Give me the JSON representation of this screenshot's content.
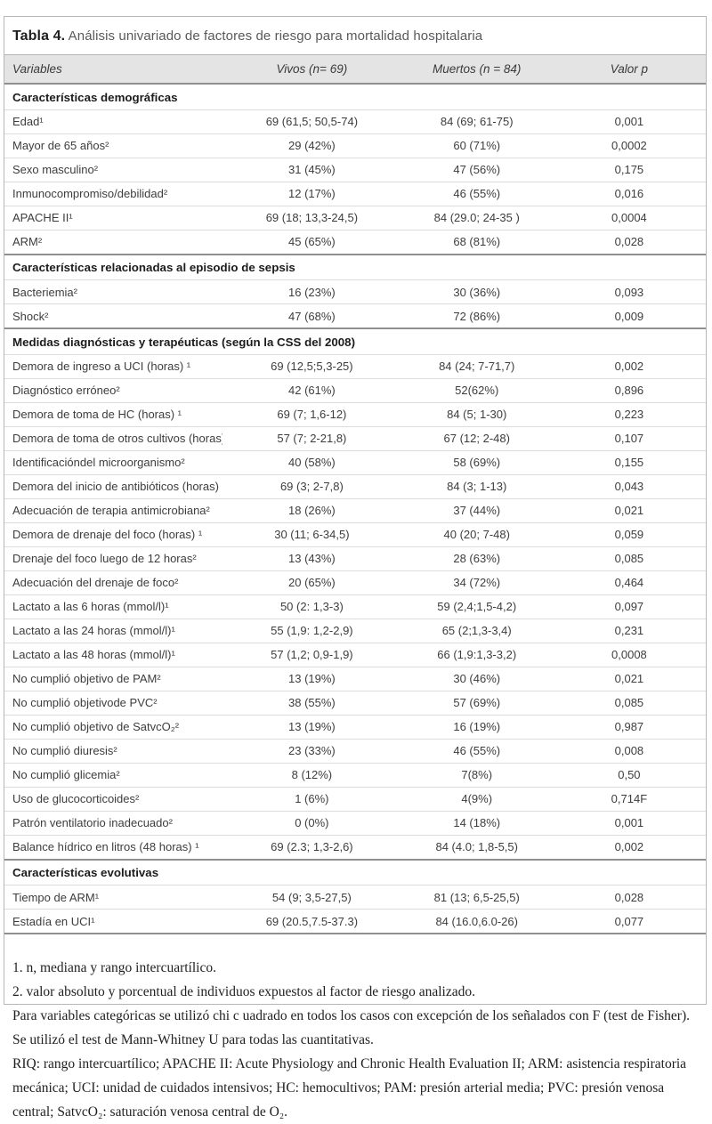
{
  "title": {
    "label": "Tabla 4.",
    "text": "Análisis univariado de factores de riesgo para mortalidad hospitalaria"
  },
  "columns": [
    "Variables",
    "Vivos (n= 69)",
    "Muertos (n = 84)",
    "Valor p"
  ],
  "sections": [
    {
      "header": "Características demográficas",
      "rows": [
        [
          "Edad¹",
          "69 (61,5; 50,5-74)",
          "84 (69; 61-75)",
          "0,001"
        ],
        [
          "Mayor de 65 años²",
          "29 (42%)",
          "60 (71%)",
          "0,0002"
        ],
        [
          "Sexo masculino²",
          "31 (45%)",
          "47 (56%)",
          "0,175"
        ],
        [
          "Inmunocompromiso/debilidad²",
          "12 (17%)",
          "46 (55%)",
          "0,016"
        ],
        [
          "APACHE II¹",
          "69 (18; 13,3-24,5)",
          "84 (29.0; 24-35 )",
          "0,0004"
        ],
        [
          "ARM²",
          "45 (65%)",
          "68 (81%)",
          "0,028"
        ]
      ]
    },
    {
      "header": "Características relacionadas al episodio de sepsis",
      "rows": [
        [
          "Bacteriemia²",
          "16 (23%)",
          "30 (36%)",
          "0,093"
        ],
        [
          "Shock²",
          "47 (68%)",
          "72 (86%)",
          "0,009"
        ]
      ]
    },
    {
      "header": "Medidas diagnósticas y terapéuticas (según la CSS del 2008)",
      "rows": [
        [
          "Demora de ingreso a UCI (horas) ¹",
          "69 (12,5;5,3-25)",
          "84 (24; 7-71,7)",
          "0,002"
        ],
        [
          "Diagnóstico erróneo²",
          "42 (61%)",
          "52(62%)",
          "0,896"
        ],
        [
          "Demora de toma de HC (horas) ¹",
          "69 (7; 1,6-12)",
          "84 (5; 1-30)",
          "0,223"
        ],
        [
          "Demora de toma de otros cultivos (horas)¹",
          "57 (7; 2-21,8)",
          "67 (12; 2-48)",
          "0,107"
        ],
        [
          "Identificacióndel microorganismo²",
          "40 (58%)",
          "58 (69%)",
          "0,155"
        ],
        [
          "Demora del inicio de antibióticos (horas) ¹",
          "69 (3; 2-7,8)",
          "84 (3; 1-13)",
          "0,043"
        ],
        [
          "Adecuación de terapia antimicrobiana²",
          "18 (26%)",
          "37 (44%)",
          "0,021"
        ],
        [
          "Demora de drenaje del foco (horas) ¹",
          "30 (11; 6-34,5)",
          "40 (20; 7-48)",
          "0,059"
        ],
        [
          "Drenaje del foco luego de 12 horas²",
          "13 (43%)",
          "28 (63%)",
          "0,085"
        ],
        [
          "Adecuación del drenaje de foco²",
          "20 (65%)",
          "34 (72%)",
          "0,464"
        ],
        [
          "Lactato a las 6 horas (mmol/l)¹",
          "50 (2: 1,3-3)",
          "59 (2,4;1,5-4,2)",
          "0,097"
        ],
        [
          "Lactato a las 24 horas (mmol/l)¹",
          "55 (1,9: 1,2-2,9)",
          "65 (2;1,3-3,4)",
          "0,231"
        ],
        [
          "Lactato a las 48 horas (mmol/l)¹",
          "57 (1,2; 0,9-1,9)",
          "66 (1,9:1,3-3,2)",
          "0,0008"
        ],
        [
          "No cumplió objetivo de PAM²",
          "13 (19%)",
          "30 (46%)",
          "0,021"
        ],
        [
          "No cumplió objetivode PVC²",
          "38 (55%)",
          "57 (69%)",
          "0,085"
        ],
        [
          "No cumplió objetivo de SatvcO₂²",
          "13 (19%)",
          "16 (19%)",
          "0,987"
        ],
        [
          "No cumplió diuresis²",
          "23 (33%)",
          "46 (55%)",
          "0,008"
        ],
        [
          "No cumplió glicemia²",
          "8 (12%)",
          "7(8%)",
          "0,50"
        ],
        [
          "Uso de glucocorticoides²",
          "1 (6%)",
          "4(9%)",
          "0,714F"
        ],
        [
          "Patrón ventilatorio inadecuado²",
          "0 (0%)",
          "14 (18%)",
          "0,001"
        ],
        [
          "Balance hídrico en litros (48 horas) ¹",
          "69 (2.3; 1,3-2,6)",
          "84 (4.0; 1,8-5,5)",
          "0,002"
        ]
      ]
    },
    {
      "header": "Características evolutivas",
      "rows": [
        [
          "Tiempo de ARM¹",
          "54 (9; 3,5-27,5)",
          "81 (13; 6,5-25,5)",
          "0,028"
        ],
        [
          "Estadía en UCI¹",
          "69 (20.5,7.5-37.3)",
          "84 (16.0,6.0-26)",
          "0,077"
        ]
      ]
    }
  ],
  "footnotes": [
    "1. n, mediana y rango intercuartílico.",
    "2. valor absoluto y porcentual de individuos expuestos al factor de riesgo analizado.",
    "Para variables categóricas se utilizó chi c uadrado en todos los casos con excepción de los señalados con F (test de Fisher). Se utilizó el test de Mann-Whitney U para todas las cuantitativas.",
    "RIQ: rango intercuartílico; APACHE II: Acute Physiology and Chronic Health Evaluation II; ARM: asistencia respiratoria mecánica; UCI: unidad de cuidados intensivos; HC: hemocultivos; PAM: presión arterial media; PVC: presión venosa central; SatvcO₂: saturación venosa central de O₂."
  ],
  "colors": {
    "header_band": "#e4e4e4",
    "section_divider": "#8f8f8f",
    "row_divider": "#dcdcdc",
    "panel_border": "#b7b7b7"
  }
}
